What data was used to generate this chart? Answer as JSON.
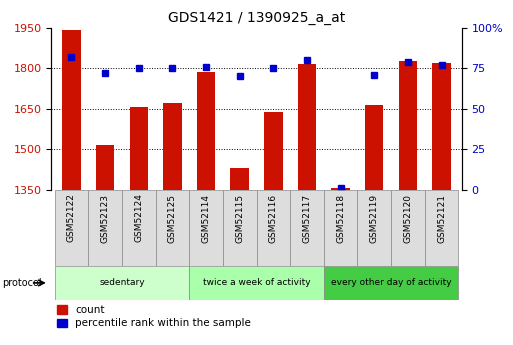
{
  "title": "GDS1421 / 1390925_a_at",
  "samples": [
    "GSM52122",
    "GSM52123",
    "GSM52124",
    "GSM52125",
    "GSM52114",
    "GSM52115",
    "GSM52116",
    "GSM52117",
    "GSM52118",
    "GSM52119",
    "GSM52120",
    "GSM52121"
  ],
  "counts": [
    1940,
    1515,
    1658,
    1672,
    1787,
    1430,
    1638,
    1815,
    1355,
    1662,
    1828,
    1818
  ],
  "percentiles": [
    82,
    72,
    75,
    75,
    76,
    70,
    75,
    80,
    1,
    71,
    79,
    77
  ],
  "ylim_left": [
    1350,
    1950
  ],
  "ylim_right": [
    0,
    100
  ],
  "yticks_left": [
    1350,
    1500,
    1650,
    1800,
    1950
  ],
  "yticks_right": [
    0,
    25,
    50,
    75,
    100
  ],
  "yticklabels_right": [
    "0",
    "25",
    "50",
    "75",
    "100%"
  ],
  "bar_color": "#cc1100",
  "dot_color": "#0000cc",
  "hgrid_ticks": [
    1500,
    1650,
    1800
  ],
  "protocol_groups": [
    {
      "label": "sedentary",
      "start": 0,
      "end": 4,
      "color": "#ccffcc"
    },
    {
      "label": "twice a week of activity",
      "start": 4,
      "end": 8,
      "color": "#aaffaa"
    },
    {
      "label": "every other day of activity",
      "start": 8,
      "end": 12,
      "color": "#44cc44"
    }
  ],
  "protocol_label": "protocol",
  "legend_count_label": "count",
  "legend_pct_label": "percentile rank within the sample",
  "bg_color": "#ffffff",
  "bar_width": 0.55,
  "n_samples": 12
}
